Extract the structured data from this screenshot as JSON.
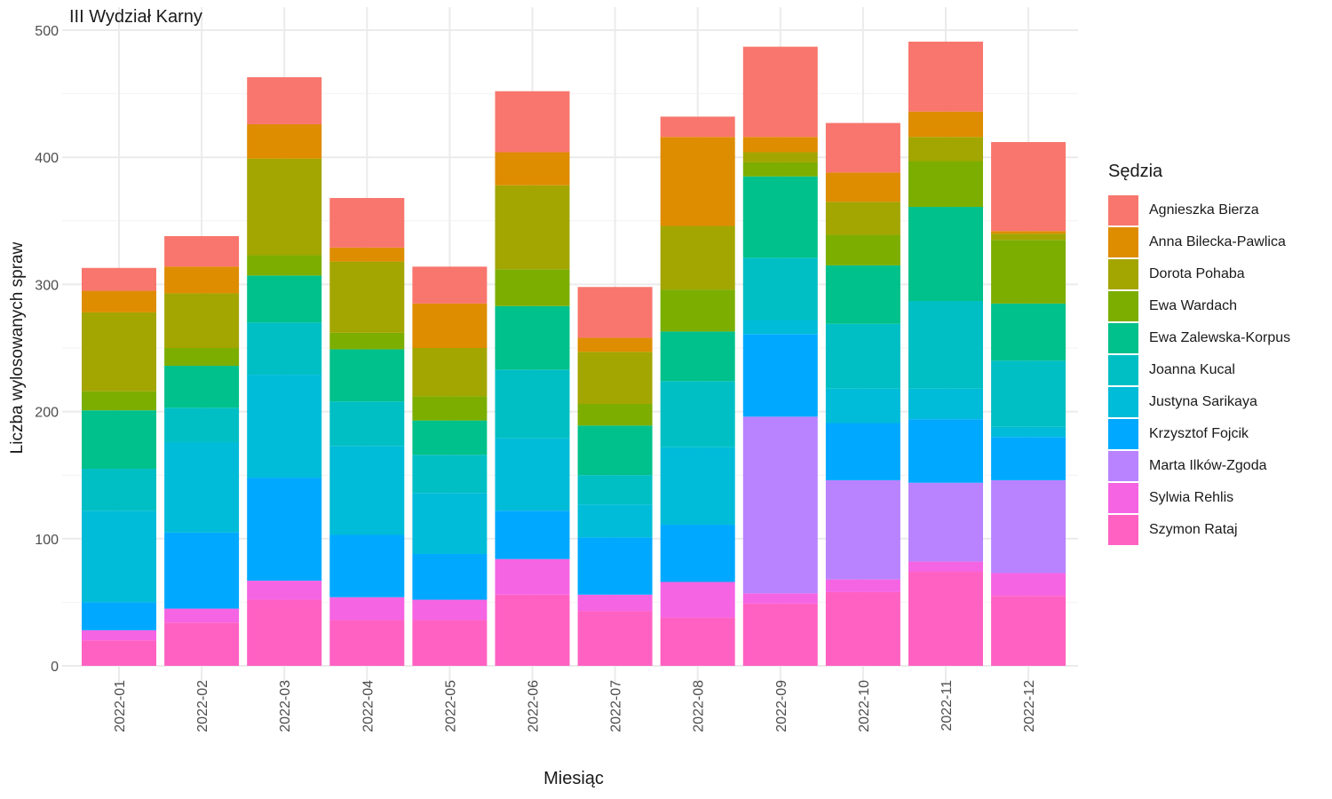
{
  "chart_data": {
    "type": "bar",
    "stacked": true,
    "title": "III Wydział Karny",
    "xlabel": "Miesiąc",
    "ylabel": "Liczba wylosowanych spraw",
    "ylim": [
      0,
      500
    ],
    "yticks": [
      "0",
      "100",
      "200",
      "300",
      "400",
      "500"
    ],
    "grid": true,
    "legend_position": "right",
    "legend_title": "Sędzia",
    "categories": [
      "2022-01",
      "2022-02",
      "2022-03",
      "2022-04",
      "2022-05",
      "2022-06",
      "2022-07",
      "2022-08",
      "2022-09",
      "2022-10",
      "2022-11",
      "2022-12"
    ],
    "series": [
      {
        "name": "Szymon Rataj",
        "color": "#FF61C3",
        "values": [
          20,
          34,
          52,
          36,
          36,
          56,
          43,
          38,
          49,
          58,
          74,
          55
        ]
      },
      {
        "name": "Sylwia Rehlis",
        "color": "#F564E3",
        "values": [
          8,
          11,
          15,
          18,
          16,
          28,
          13,
          28,
          8,
          10,
          8,
          18
        ]
      },
      {
        "name": "Marta Ilków-Zgoda",
        "color": "#B983FF",
        "values": [
          0,
          0,
          0,
          0,
          0,
          0,
          0,
          0,
          139,
          78,
          62,
          73
        ]
      },
      {
        "name": "Krzysztof Fojcik",
        "color": "#00A9FF",
        "values": [
          22,
          60,
          81,
          49,
          36,
          38,
          45,
          45,
          65,
          45,
          50,
          34
        ]
      },
      {
        "name": "Justyna Sarikaya",
        "color": "#00BCD8",
        "values": [
          72,
          71,
          81,
          70,
          48,
          57,
          26,
          61,
          11,
          27,
          24,
          8
        ]
      },
      {
        "name": "Joanna Kucal",
        "color": "#00BFC4",
        "values": [
          33,
          27,
          41,
          35,
          30,
          54,
          23,
          52,
          49,
          51,
          69,
          52
        ]
      },
      {
        "name": "Ewa Zalewska-Korpus",
        "color": "#00C08B",
        "values": [
          46,
          33,
          37,
          41,
          27,
          50,
          39,
          39,
          64,
          46,
          74,
          45
        ]
      },
      {
        "name": "Ewa Wardach",
        "color": "#7CAE00",
        "values": [
          15,
          14,
          16,
          13,
          19,
          29,
          17,
          33,
          11,
          24,
          36,
          50
        ]
      },
      {
        "name": "Dorota Pohaba",
        "color": "#A3A500",
        "values": [
          62,
          43,
          76,
          56,
          38,
          66,
          41,
          50,
          8,
          26,
          19,
          5
        ]
      },
      {
        "name": "Anna Bilecka-Pawlica",
        "color": "#DE8C00",
        "values": [
          17,
          21,
          27,
          11,
          35,
          26,
          11,
          70,
          12,
          23,
          20,
          2
        ]
      },
      {
        "name": "Agnieszka Bierza",
        "color": "#F8766D",
        "values": [
          18,
          24,
          37,
          39,
          29,
          48,
          40,
          16,
          71,
          39,
          55,
          70
        ]
      }
    ]
  }
}
